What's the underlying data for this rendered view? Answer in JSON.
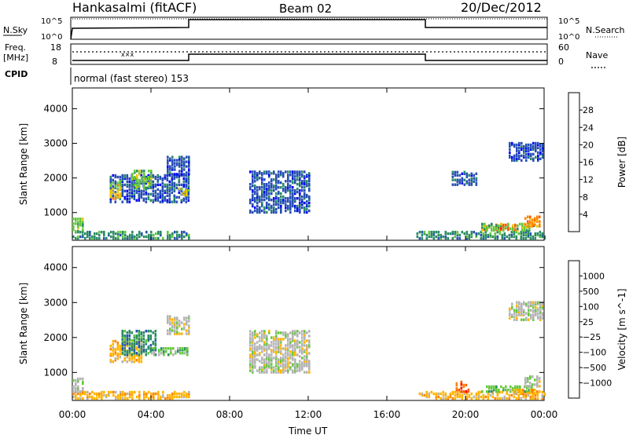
{
  "header": {
    "station": "Hankasalmi (fitACF)",
    "beam": "Beam 02",
    "date": "20/Dec/2012"
  },
  "top_panels": {
    "nsky_label": "N.Sky",
    "nsearch_label": "N.Search",
    "freq_label_1": "Freq.",
    "freq_label_2": "[MHz]",
    "nave_label": "Nave",
    "cpid_label": "CPID",
    "cpid_text": "normal (fast stereo) 153",
    "nsky_ticks": [
      "10^5",
      "10^0"
    ],
    "nsearch_ticks": [
      "10^5",
      "10^0"
    ],
    "freq_ticks": [
      "18",
      "8"
    ],
    "nave_ticks": [
      "60",
      "0"
    ]
  },
  "chart_data": [
    {
      "type": "heatmap",
      "name": "power",
      "ylabel": "Slant Range [km]",
      "xlabel": "",
      "x_ticks": [
        "00:00",
        "04:00",
        "08:00",
        "12:00",
        "16:00",
        "20:00",
        "00:00"
      ],
      "y_ticks": [
        "1000",
        "2000",
        "3000",
        "4000"
      ],
      "ylim": [
        200,
        4600
      ],
      "xlim_hours": [
        0,
        24
      ],
      "colorbar": {
        "label": "Power [dB]",
        "ticks": [
          "4",
          "8",
          "12",
          "16",
          "20",
          "24",
          "28"
        ],
        "colors": [
          "#0000ff",
          "#2850b4",
          "#2a8c64",
          "#64c83c",
          "#e6c800",
          "#ff8200",
          "#ff5a00",
          "#ff0000"
        ]
      },
      "regions": [
        {
          "t0": 0.0,
          "t1": 5.9,
          "r0": 250,
          "r1": 450,
          "level": 2
        },
        {
          "t0": 0.0,
          "t1": 0.6,
          "r0": 450,
          "r1": 850,
          "level": 3
        },
        {
          "t0": 1.9,
          "t1": 5.9,
          "r0": 1300,
          "r1": 2100,
          "level": 1
        },
        {
          "t0": 1.9,
          "t1": 2.5,
          "r0": 1400,
          "r1": 1900,
          "level": 4
        },
        {
          "t0": 3.0,
          "t1": 4.0,
          "r0": 1700,
          "r1": 2200,
          "level": 3
        },
        {
          "t0": 5.4,
          "t1": 5.9,
          "r0": 1500,
          "r1": 1700,
          "level": 4
        },
        {
          "t0": 4.8,
          "t1": 5.9,
          "r0": 2100,
          "r1": 2600,
          "level": 1
        },
        {
          "t0": 9.0,
          "t1": 12.0,
          "r0": 1000,
          "r1": 2200,
          "level": 1
        },
        {
          "t0": 17.5,
          "t1": 24.0,
          "r0": 250,
          "r1": 450,
          "level": 2
        },
        {
          "t0": 20.8,
          "t1": 22.6,
          "r0": 500,
          "r1": 650,
          "level": 6
        },
        {
          "t0": 20.8,
          "t1": 23.5,
          "r0": 480,
          "r1": 700,
          "level": 3
        },
        {
          "t0": 23.0,
          "t1": 23.8,
          "r0": 600,
          "r1": 900,
          "level": 5
        },
        {
          "t0": 22.2,
          "t1": 24.0,
          "r0": 2500,
          "r1": 3000,
          "level": 1
        },
        {
          "t0": 19.3,
          "t1": 20.6,
          "r0": 1800,
          "r1": 2200,
          "level": 1
        }
      ]
    },
    {
      "type": "heatmap",
      "name": "velocity",
      "ylabel": "Slant Range [km]",
      "xlabel": "Time UT",
      "x_ticks": [
        "00:00",
        "04:00",
        "08:00",
        "12:00",
        "16:00",
        "20:00",
        "00:00"
      ],
      "y_ticks": [
        "1000",
        "2000",
        "3000",
        "4000"
      ],
      "ylim": [
        200,
        4600
      ],
      "xlim_hours": [
        0,
        24
      ],
      "colorbar": {
        "label": "Velocity [m s^-1]",
        "ticks": [
          "1000",
          "500",
          "100",
          "25",
          "-25",
          "-100",
          "-500",
          "-1000"
        ],
        "colors": [
          "#0000ff",
          "#2850b4",
          "#2a8c64",
          "#64c83c",
          "#b4b4b4",
          "#ffb400",
          "#ff8200",
          "#ff5a00",
          "#ff0000"
        ]
      },
      "regions": [
        {
          "t0": 0.0,
          "t1": 5.9,
          "r0": 250,
          "r1": 450,
          "level": 5
        },
        {
          "t0": 0.0,
          "t1": 0.6,
          "r0": 450,
          "r1": 850,
          "level": 4
        },
        {
          "t0": 1.9,
          "t1": 3.5,
          "r0": 1300,
          "r1": 1900,
          "level": 5
        },
        {
          "t0": 2.5,
          "t1": 4.2,
          "r0": 1500,
          "r1": 2200,
          "level": 2
        },
        {
          "t0": 4.0,
          "t1": 5.9,
          "r0": 1500,
          "r1": 1700,
          "level": 3
        },
        {
          "t0": 4.8,
          "t1": 5.9,
          "r0": 2100,
          "r1": 2600,
          "level": 4
        },
        {
          "t0": 9.0,
          "t1": 12.0,
          "r0": 1000,
          "r1": 2200,
          "level": 4
        },
        {
          "t0": 17.5,
          "t1": 24.0,
          "r0": 250,
          "r1": 450,
          "level": 5
        },
        {
          "t0": 20.8,
          "t1": 23.5,
          "r0": 450,
          "r1": 600,
          "level": 3
        },
        {
          "t0": 22.4,
          "t1": 23.8,
          "r0": 400,
          "r1": 520,
          "level": 5
        },
        {
          "t0": 23.0,
          "t1": 23.8,
          "r0": 600,
          "r1": 900,
          "level": 4
        },
        {
          "t0": 22.2,
          "t1": 24.0,
          "r0": 2500,
          "r1": 3000,
          "level": 4
        },
        {
          "t0": 19.5,
          "t1": 20.2,
          "r0": 450,
          "r1": 750,
          "level": 7
        }
      ]
    }
  ]
}
